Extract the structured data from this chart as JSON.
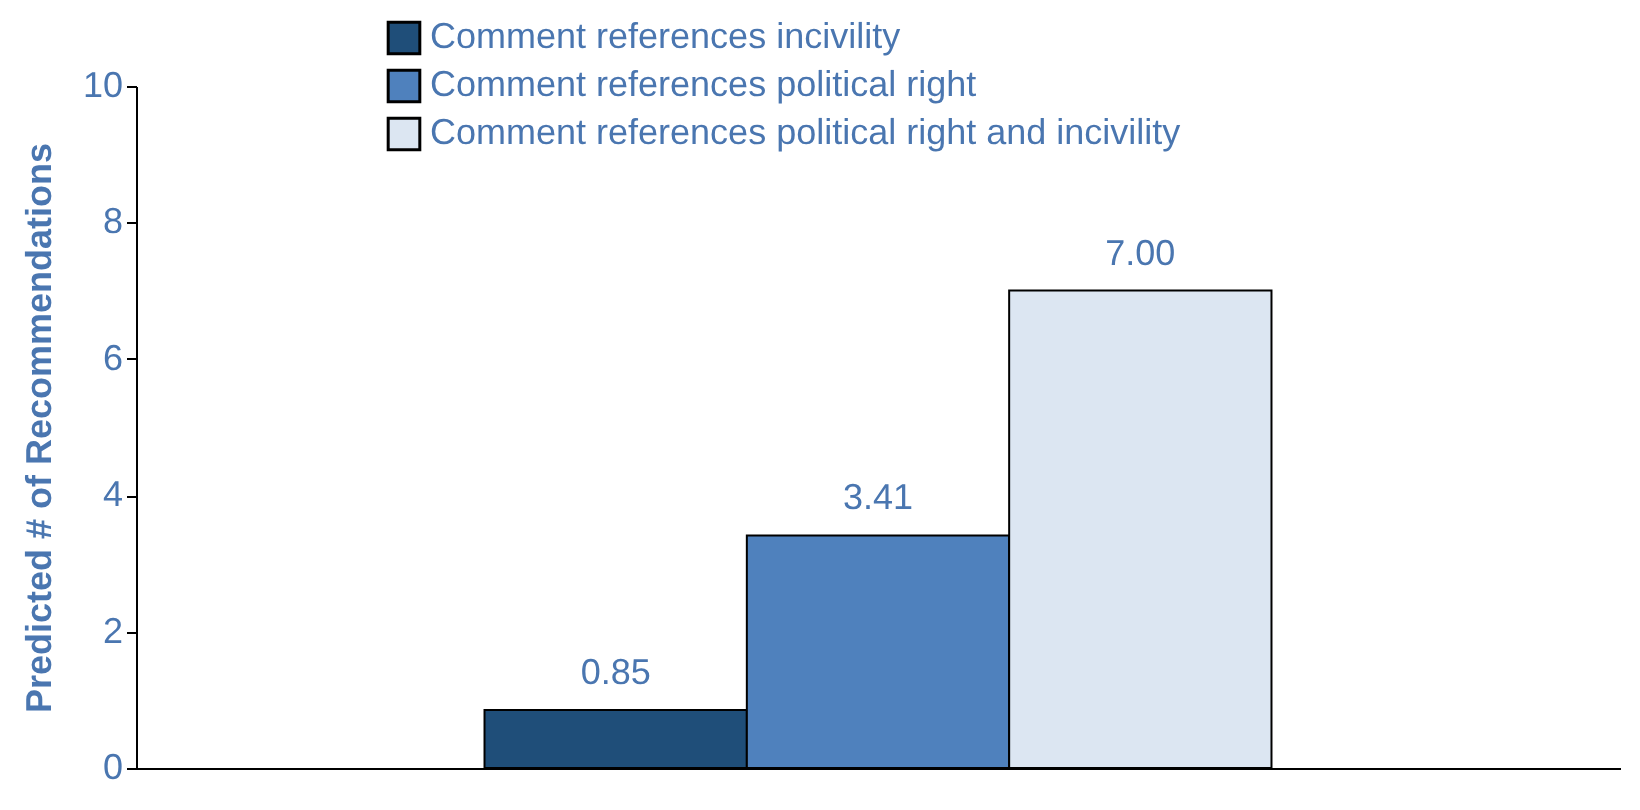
{
  "chart_data": {
    "type": "bar",
    "ylabel": "Predicted # of Recommendations",
    "categories": [
      null
    ],
    "ylim": [
      0,
      10
    ],
    "yticks": [
      0,
      2,
      4,
      6,
      8,
      10
    ],
    "grid": false,
    "legend": "top",
    "tick_labels": "y",
    "series": [
      {
        "name": "Comment references incivility",
        "color": "#1f4e79",
        "values": [
          0.85
        ],
        "value_labels": [
          "0.85"
        ]
      },
      {
        "name": "Comment references political right",
        "color": "#4f81bd",
        "values": [
          3.41
        ],
        "value_labels": [
          "3.41"
        ]
      },
      {
        "name": "Comment references political right and incivility",
        "color": "#dce6f2",
        "values": [
          7.0
        ],
        "value_labels": [
          "7.00"
        ]
      }
    ]
  }
}
